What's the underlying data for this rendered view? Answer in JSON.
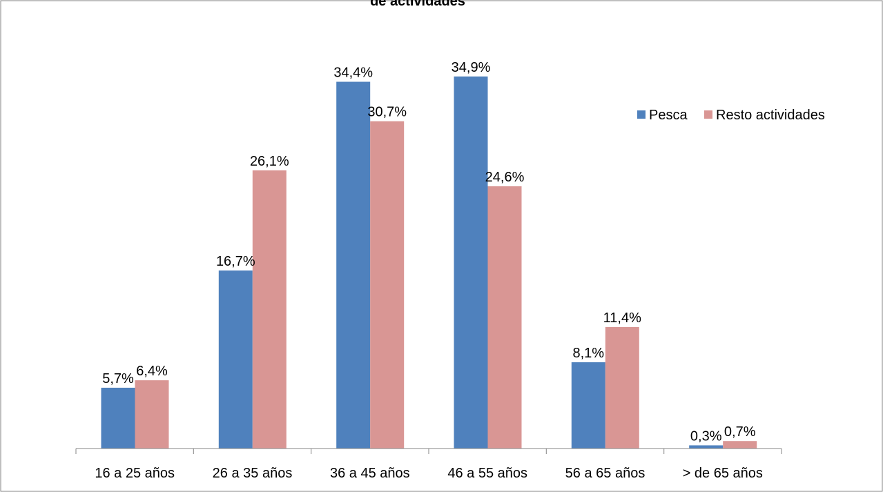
{
  "chart_data": {
    "type": "bar",
    "title": "de actividades",
    "xlabel": "",
    "ylabel": "",
    "ylim": [
      0,
      37
    ],
    "grid": false,
    "legend_position": "right",
    "categories": [
      "16 a 25 años",
      "26 a 35 años",
      "36 a 45 años",
      "46 a 55 años",
      "56 a 65 años",
      "> de 65 años"
    ],
    "series": [
      {
        "name": "Pesca",
        "color": "#4f81bd",
        "values": [
          5.7,
          16.7,
          34.4,
          34.9,
          8.1,
          0.3
        ],
        "labels": [
          "5,7%",
          "16,7%",
          "34,4%",
          "34,9%",
          "8,1%",
          "0,3%"
        ]
      },
      {
        "name": "Resto actividades",
        "color": "#d99694",
        "values": [
          6.4,
          26.1,
          30.7,
          24.6,
          11.4,
          0.7
        ],
        "labels": [
          "6,4%",
          "26,1%",
          "30,7%",
          "24,6%",
          "11,4%",
          "0,7%"
        ]
      }
    ]
  }
}
